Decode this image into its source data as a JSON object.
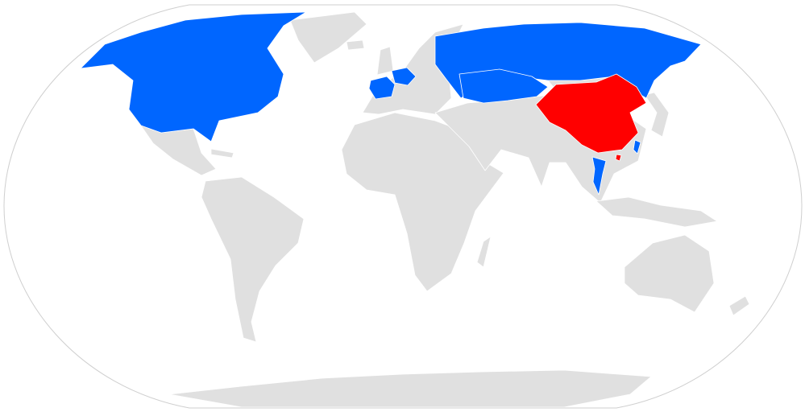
{
  "map": {
    "projection": "Robinson",
    "colors": {
      "primary_highlight": "#ff0000",
      "secondary_highlight": "#0066ff",
      "default_land": "#e0e0e0",
      "ocean": "#ffffff",
      "frame": "#cfcfcf"
    }
  }
}
